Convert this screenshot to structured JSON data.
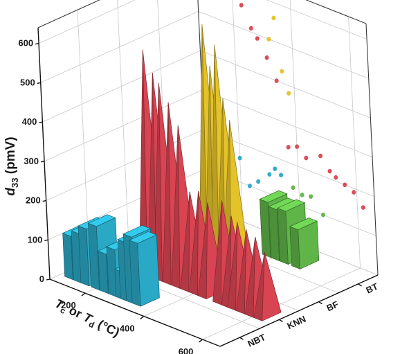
{
  "chart_data": {
    "type": "3d-bar",
    "ylabel": {
      "base": "d",
      "sub": "33",
      "unit": " (pmV)"
    },
    "xlabel": {
      "t1": "T",
      "s1": "c",
      "mid": " or ",
      "t2": "T",
      "s2": "d",
      "unit": " (°C)"
    },
    "y_ticks": [
      0,
      100,
      200,
      300,
      400,
      500,
      600
    ],
    "x_ticks": [
      200,
      400,
      600
    ],
    "categories": [
      "NBT",
      "KNN",
      "BF",
      "BT"
    ],
    "ylim": [
      0,
      640
    ],
    "xlim": [
      80,
      660
    ],
    "colors": {
      "NBT": "#2aa9c6",
      "KNN": "#d94452",
      "BF": "#e3c22a",
      "BT": "#5fb548"
    },
    "series": [
      {
        "name": "NBT",
        "values": [
          [
            110,
            110
          ],
          [
            140,
            125
          ],
          [
            165,
            145
          ],
          [
            200,
            162
          ],
          [
            230,
            100
          ],
          [
            260,
            120
          ],
          [
            285,
            70
          ],
          [
            300,
            150
          ],
          [
            320,
            170
          ],
          [
            340,
            160
          ]
        ]
      },
      {
        "name": "KNN",
        "values": [
          [
            230,
            560
          ],
          [
            260,
            510
          ],
          [
            280,
            490
          ],
          [
            310,
            450
          ],
          [
            340,
            400
          ],
          [
            370,
            240
          ],
          [
            400,
            250
          ],
          [
            430,
            230
          ],
          [
            480,
            250
          ],
          [
            510,
            220
          ],
          [
            530,
            210
          ],
          [
            560,
            200
          ],
          [
            590,
            190
          ],
          [
            620,
            160
          ]
        ]
      },
      {
        "name": "BF",
        "values": [
          [
            300,
            600
          ],
          [
            320,
            500
          ],
          [
            340,
            560
          ],
          [
            360,
            430
          ],
          [
            380,
            380
          ]
        ]
      },
      {
        "name": "BT",
        "values": [
          [
            380,
            140
          ],
          [
            410,
            130
          ],
          [
            440,
            135
          ],
          [
            480,
            100
          ]
        ]
      }
    ]
  }
}
